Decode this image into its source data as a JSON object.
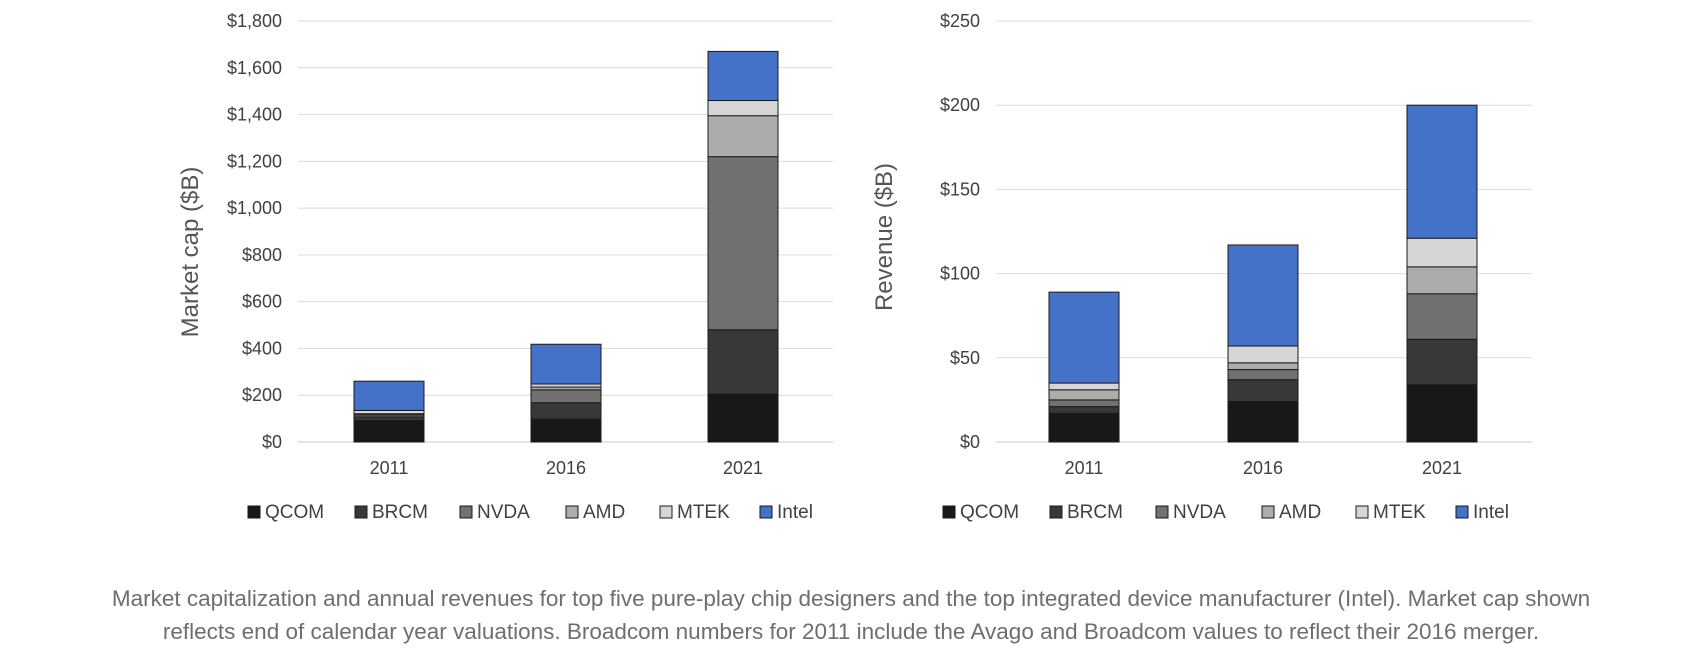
{
  "chart_data": [
    {
      "type": "bar",
      "stacked": true,
      "ylabel": "Market cap ($B)",
      "ylim": [
        0,
        1800
      ],
      "yticks": [
        "$0",
        "$200",
        "$400",
        "$600",
        "$800",
        "$1,000",
        "$1,200",
        "$1,400",
        "$1,600",
        "$1,800"
      ],
      "categories": [
        "2011",
        "2016",
        "2021"
      ],
      "grid": true,
      "legend": "bottom",
      "series": [
        {
          "name": "QCOM",
          "color": "#181818",
          "values": [
            92,
            98,
            205
          ]
        },
        {
          "name": "BRCM",
          "color": "#383838",
          "values": [
            15,
            70,
            275
          ]
        },
        {
          "name": "NVDA",
          "color": "#727070",
          "values": [
            9,
            55,
            740
          ]
        },
        {
          "name": "AMD",
          "color": "#aeacab",
          "values": [
            5,
            12,
            175
          ]
        },
        {
          "name": "MTEK",
          "color": "#d6d6d6",
          "values": [
            14,
            13,
            65
          ]
        },
        {
          "name": "Intel",
          "color": "#4472c8",
          "values": [
            125,
            170,
            210
          ]
        }
      ]
    },
    {
      "type": "bar",
      "stacked": true,
      "ylabel": "Revenue ($B)",
      "ylim": [
        0,
        250
      ],
      "yticks": [
        "$0",
        "$50",
        "$100",
        "$150",
        "$200",
        "$250"
      ],
      "categories": [
        "2011",
        "2016",
        "2021"
      ],
      "grid": true,
      "legend": "bottom",
      "series": [
        {
          "name": "QCOM",
          "color": "#181818",
          "values": [
            17,
            24,
            34
          ]
        },
        {
          "name": "BRCM",
          "color": "#383838",
          "values": [
            4,
            13,
            27
          ]
        },
        {
          "name": "NVDA",
          "color": "#727070",
          "values": [
            4,
            6,
            27
          ]
        },
        {
          "name": "AMD",
          "color": "#aeacab",
          "values": [
            6,
            4,
            16
          ]
        },
        {
          "name": "MTEK",
          "color": "#d6d6d6",
          "values": [
            4,
            10,
            17
          ]
        },
        {
          "name": "Intel",
          "color": "#4472c8",
          "values": [
            54,
            60,
            79
          ]
        }
      ]
    }
  ],
  "caption": {
    "line1": "Market capitalization and annual revenues for top five pure-play chip designers and the top integrated device manufacturer (Intel). Market cap shown",
    "line2": "reflects end of calendar year valuations. Broadcom numbers for 2011 include the Avago and Broadcom values to reflect their 2016 merger."
  }
}
